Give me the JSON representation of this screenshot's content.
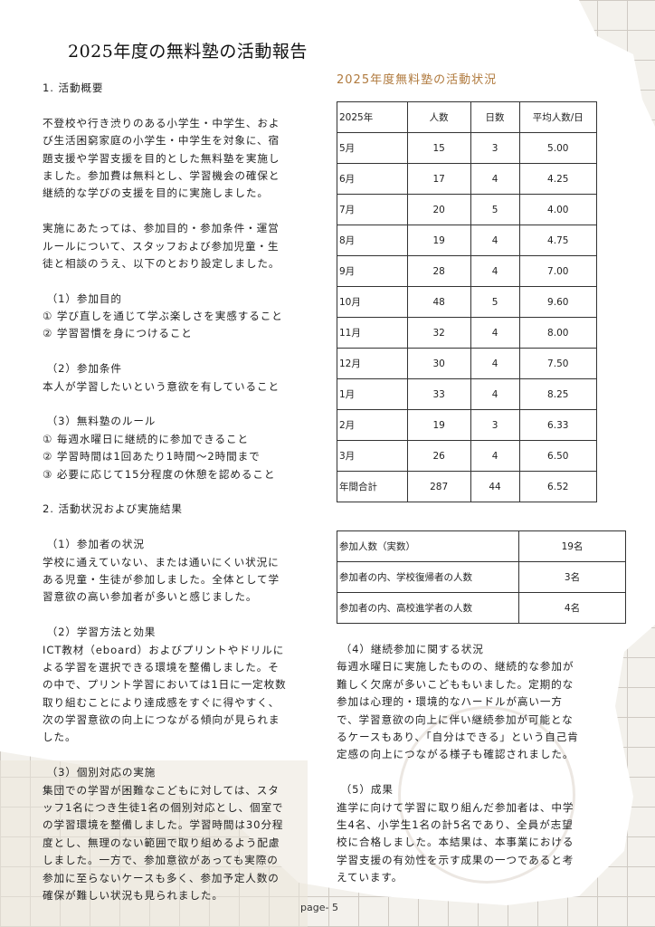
{
  "title": "2025年度の無料塾の活動報告",
  "left_column": {
    "lines": [
      "1. 活動概要",
      "",
      "不登校や行き渋りのある小学生・中学生、およ",
      "び生活困窮家庭の小学生・中学生を対象に、宿",
      "題支援や学習支援を目的とした無料塾を実施し",
      "ました。参加費は無料とし、学習機会の確保と",
      "継続的な学びの支援を目的に実施しました。",
      "",
      "実施にあたっては、参加目的・参加条件・運営",
      "ルールについて、スタッフおよび参加児童・生",
      "徒と相談のうえ、以下のとおり設定しました。",
      "",
      " （1）参加目的",
      "① 学び直しを通じて学ぶ楽しさを実感すること",
      "② 学習習慣を身につけること",
      "",
      " （2）参加条件",
      "本人が学習したいという意欲を有していること",
      "",
      " （3）無料塾のルール",
      "① 毎週水曜日に継続的に参加できること",
      "② 学習時間は1回あたり1時間～2時間まで",
      "③ 必要に応じて15分程度の休憩を認めること",
      "",
      "2. 活動状況および実施結果",
      "",
      " （1）参加者の状況",
      "学校に通えていない、または通いにくい状況に",
      "ある児童・生徒が参加しました。全体として学",
      "習意欲の高い参加者が多いと感じました。",
      "",
      " （2）学習方法と効果",
      "ICT教材（eboard）およびプリントやドリルに",
      "よる学習を選択できる環境を整備しました。そ",
      "の中で、プリント学習においては1日に一定枚数",
      "取り組むことにより達成感をすぐに得やすく、",
      "次の学習意欲の向上につながる傾向が見られま",
      "した。",
      "",
      " （3）個別対応の実施",
      "集団での学習が困難なこどもに対しては、スタ",
      "ッフ1名につき生徒1名の個別対応とし、個室で",
      "の学習環境を整備しました。学習時間は30分程",
      "度とし、無理のない範囲で取り組めるよう配慮",
      "しました。一方で、参加意欲があっても実際の",
      "参加に至らないケースも多く、参加予定人数の",
      "確保が難しい状況も見られました。"
    ]
  },
  "right_column": {
    "lines": [
      " （4）継続参加に関する状況",
      "毎週水曜日に実施したものの、継続的な参加が",
      "難しく欠席が多いこどももいました。定期的な",
      "参加は心理的・環境的なハードルが高い一方",
      "で、学習意欲の向上に伴い継続参加が可能とな",
      "るケースもあり、「自分はできる」という自己肯",
      "定感の向上につながる様子も確認されました。",
      "",
      " （5）成果",
      "進学に向けて学習に取り組んだ参加者は、中学",
      "生4名、小学生1名の計5名であり、全員が志望",
      "校に合格しました。本結果は、本事業における",
      "学習支援の有効性を示す成果の一つであると考",
      "えています。"
    ]
  },
  "activity_table": {
    "title": "2025年度無料塾の活動状況",
    "title_color": "#b07a3e",
    "headers": [
      "2025年",
      "人数",
      "日数",
      "平均人数/日"
    ],
    "rows": [
      [
        "5月",
        "15",
        "3",
        "5.00"
      ],
      [
        "6月",
        "17",
        "4",
        "4.25"
      ],
      [
        "7月",
        "20",
        "5",
        "4.00"
      ],
      [
        "8月",
        "19",
        "4",
        "4.75"
      ],
      [
        "9月",
        "28",
        "4",
        "7.00"
      ],
      [
        "10月",
        "48",
        "5",
        "9.60"
      ],
      [
        "11月",
        "32",
        "4",
        "8.00"
      ],
      [
        "12月",
        "30",
        "4",
        "7.50"
      ],
      [
        "1月",
        "33",
        "4",
        "8.25"
      ],
      [
        "2月",
        "19",
        "3",
        "6.33"
      ],
      [
        "3月",
        "26",
        "4",
        "6.50"
      ],
      [
        "年間合計",
        "287",
        "44",
        "6.52"
      ]
    ]
  },
  "summary_table": {
    "rows": [
      [
        "参加人数（実数）",
        "19名"
      ],
      [
        "参加者の内、学校復帰者の人数",
        "3名"
      ],
      [
        "参加者の内、高校進学者の人数",
        "4名"
      ]
    ]
  },
  "footer": {
    "page": "page- 5"
  }
}
